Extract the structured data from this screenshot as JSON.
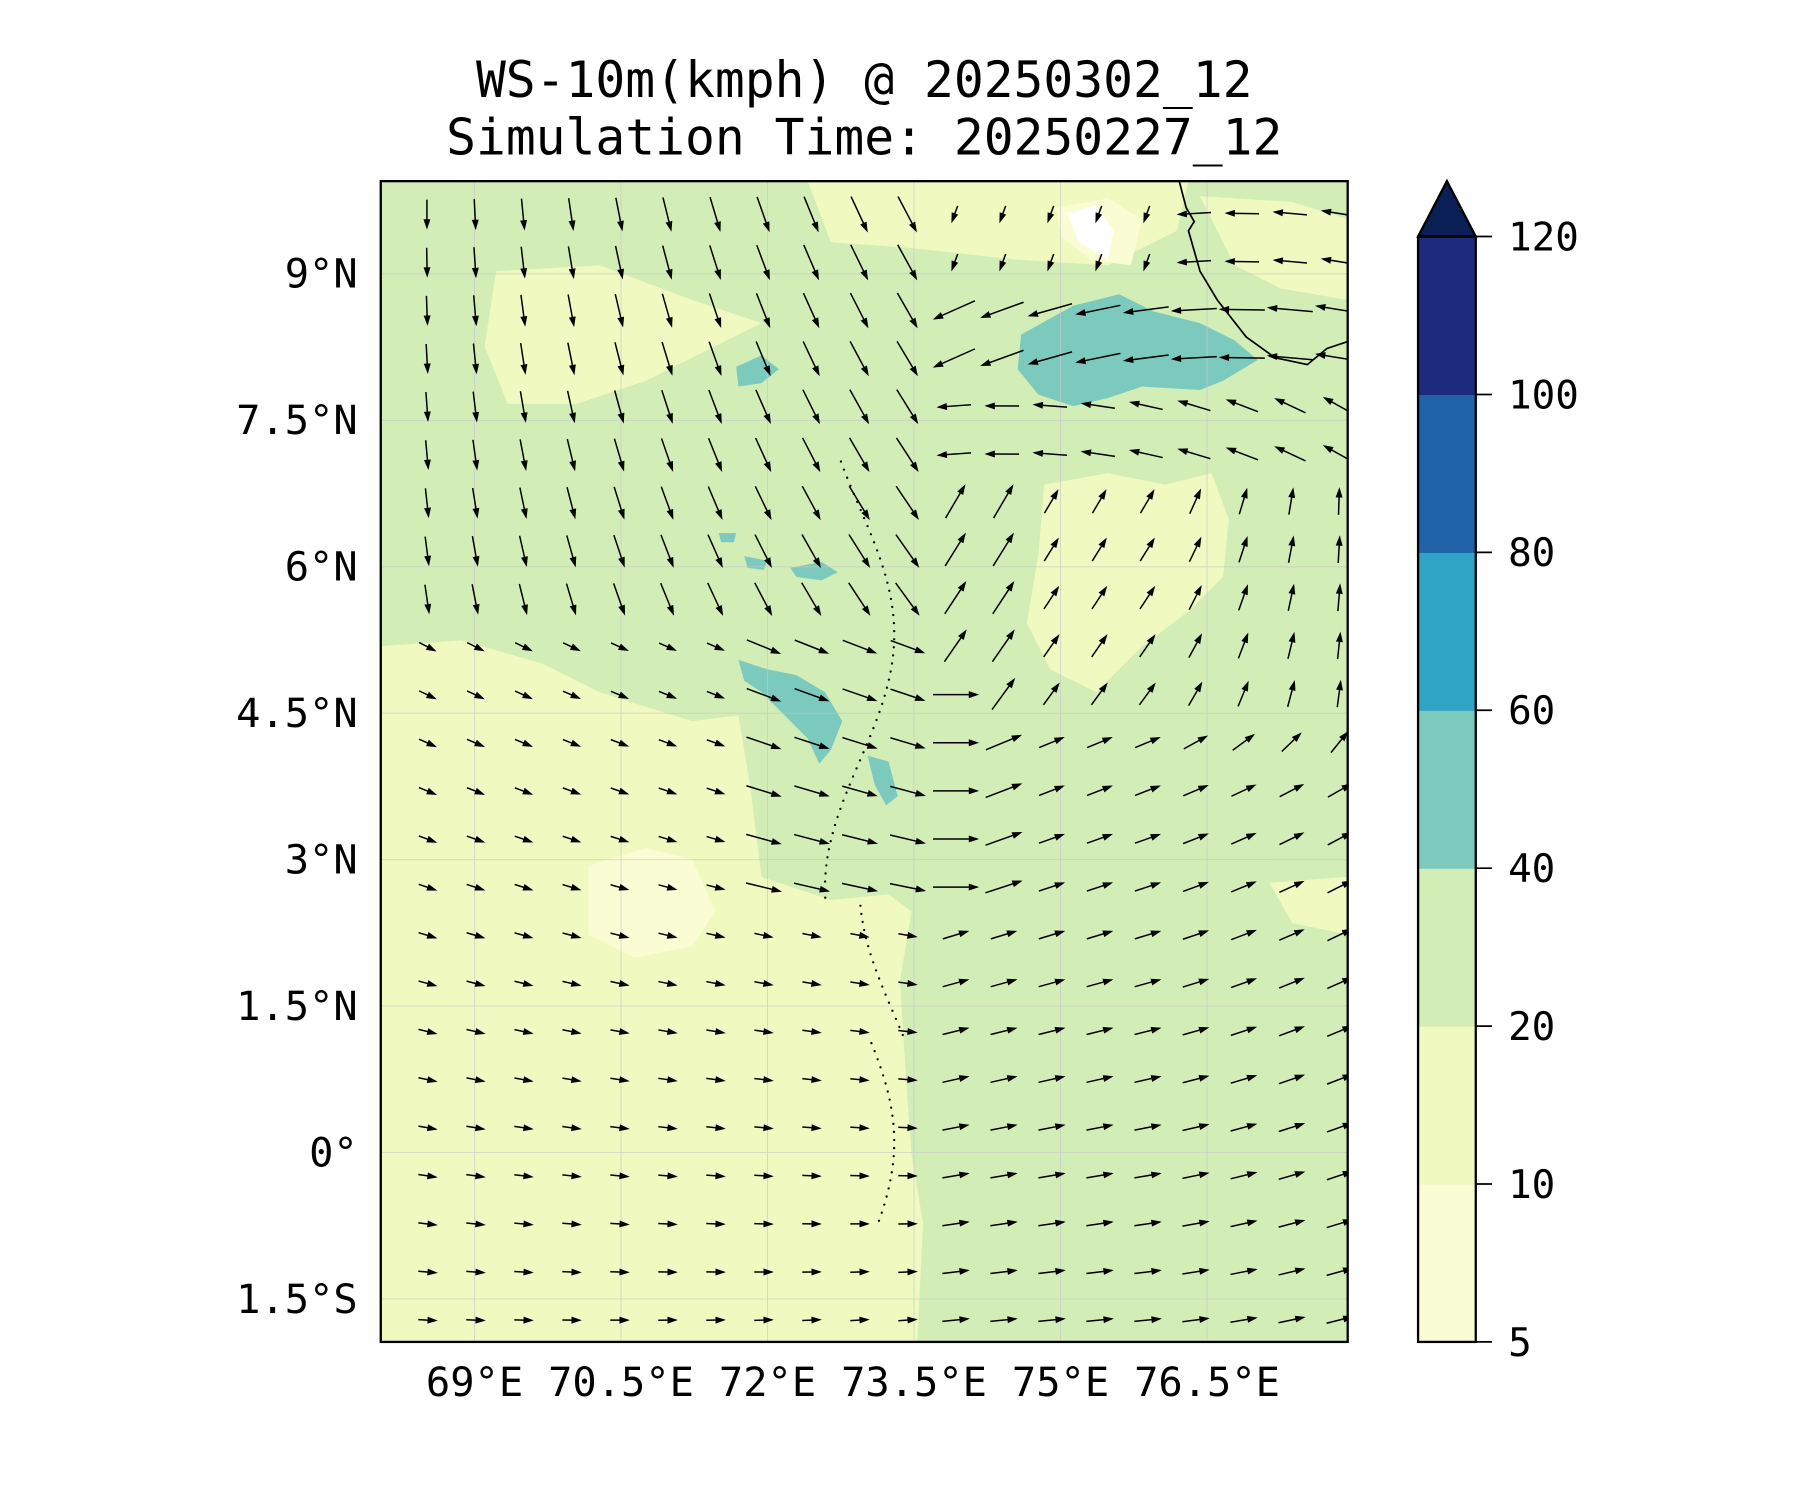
{
  "chart_data": {
    "type": "heatmap",
    "title": "WS-10m(kmph) @ 20250302_12",
    "subtitle": "Simulation Time: 20250227_12",
    "variable": "10 m wind speed (kmph) with wind vectors",
    "lon_range": [
      68.04,
      77.94
    ],
    "lat_range": [
      -1.94,
      9.95
    ],
    "x_ticks": [
      {
        "value": 69,
        "label": "69°E"
      },
      {
        "value": 70.5,
        "label": "70.5°E"
      },
      {
        "value": 72,
        "label": "72°E"
      },
      {
        "value": 73.5,
        "label": "73.5°E"
      },
      {
        "value": 75,
        "label": "75°E"
      },
      {
        "value": 76.5,
        "label": "76.5°E"
      }
    ],
    "y_ticks": [
      {
        "value": 9,
        "label": "9°N"
      },
      {
        "value": 7.5,
        "label": "7.5°N"
      },
      {
        "value": 6,
        "label": "6°N"
      },
      {
        "value": 4.5,
        "label": "4.5°N"
      },
      {
        "value": 3,
        "label": "3°N"
      },
      {
        "value": 1.5,
        "label": "1.5°N"
      },
      {
        "value": 0,
        "label": "0°"
      },
      {
        "value": -1.5,
        "label": "1.5°S"
      }
    ],
    "grid": true,
    "colorbar": {
      "position": "right",
      "extend": "max",
      "levels": [
        5,
        10,
        20,
        40,
        60,
        80,
        100,
        120
      ],
      "labels": [
        "5",
        "10",
        "20",
        "40",
        "60",
        "80",
        "100",
        "120"
      ],
      "colors": [
        "#fafdd3",
        "#eff9c0",
        "#d2edb5",
        "#7bcabd",
        "#2fa4c4",
        "#2163a8",
        "#1c2b7e"
      ],
      "extend_color": "#0b1f57"
    }
  }
}
